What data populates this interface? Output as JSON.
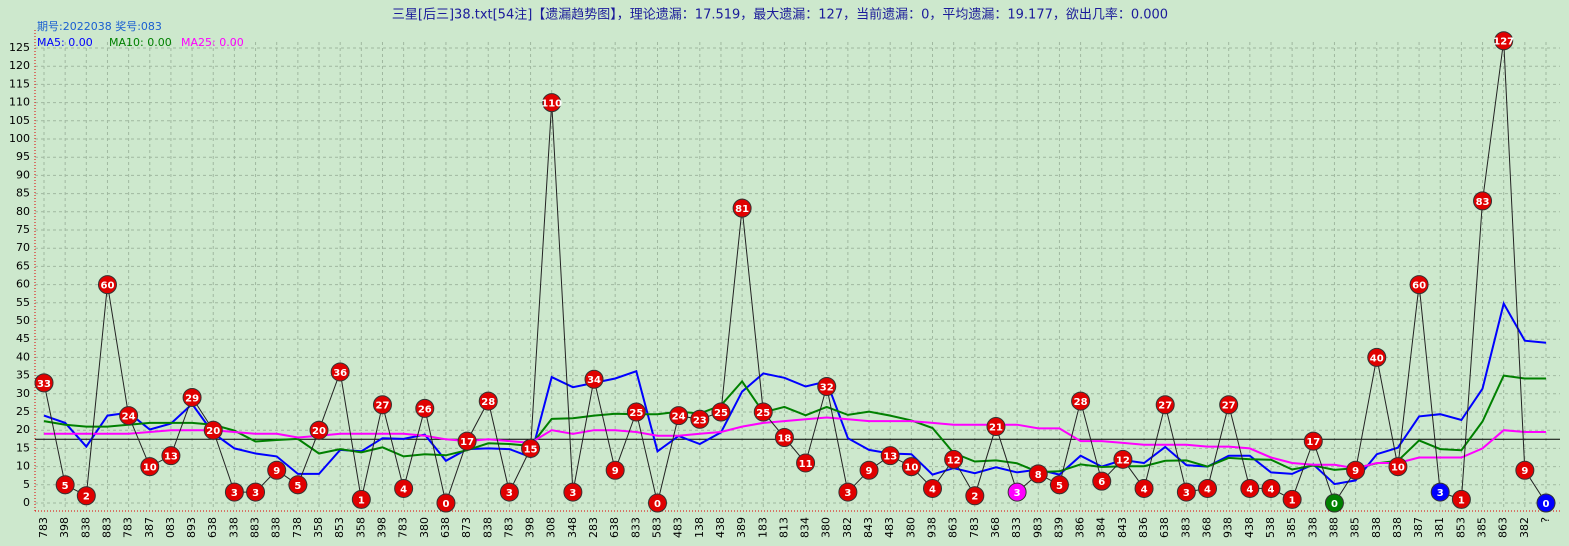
{
  "chart_data": {
    "type": "line",
    "title": "三星[后三]38.txt[54注]【遗漏趋势图】，理论遗漏：17.519，最大遗漏：127，当前遗漏：0，平均遗漏：19.177，欲出几率：0.000",
    "subtitle": "期号:2022038 奖号:083",
    "categories": [
      "783",
      "398",
      "838",
      "883",
      "783",
      "387",
      "083",
      "893",
      "638",
      "338",
      "883",
      "838",
      "738",
      "358",
      "853",
      "358",
      "398",
      "783",
      "380",
      "638",
      "873",
      "838",
      "783",
      "398",
      "308",
      "348",
      "283",
      "638",
      "833",
      "583",
      "483",
      "138",
      "438",
      "389",
      "183",
      "813",
      "834",
      "380",
      "382",
      "843",
      "483",
      "380",
      "938",
      "863",
      "783",
      "368",
      "833",
      "983",
      "839",
      "386",
      "384",
      "843",
      "836",
      "638",
      "383",
      "368",
      "938",
      "438",
      "538",
      "385",
      "338",
      "388",
      "385",
      "838",
      "838",
      "387",
      "381",
      "853",
      "385",
      "863",
      "382",
      "?"
    ],
    "values": [
      33,
      5,
      2,
      60,
      24,
      10,
      13,
      29,
      20,
      3,
      3,
      9,
      5,
      20,
      36,
      1,
      27,
      4,
      26,
      0,
      17,
      28,
      3,
      15,
      110,
      3,
      34,
      9,
      25,
      0,
      24,
      23,
      25,
      81,
      25,
      18,
      11,
      32,
      3,
      9,
      13,
      10,
      4,
      12,
      2,
      21,
      3,
      8,
      5,
      28,
      6,
      12,
      4,
      27,
      3,
      4,
      27,
      4,
      4,
      1,
      17,
      0,
      9,
      40,
      10,
      60,
      3,
      1,
      83,
      127,
      9,
      0
    ],
    "color": "#222222",
    "point_color": "#e00000",
    "special_points": [
      {
        "index": 46,
        "color": "#ff00ff"
      },
      {
        "index": 61,
        "color": "#008000"
      },
      {
        "index": 66,
        "color": "#0000ff"
      },
      {
        "index": 71,
        "color": "#0000ff"
      }
    ],
    "series": [
      {
        "name": "MA5: 0.00",
        "color": "#0000ff",
        "values": [
          24,
          22,
          15.5,
          24,
          24.8,
          20.2,
          21.8,
          27.2,
          19.2,
          15,
          13.6,
          12.8,
          8,
          8,
          14.6,
          14.2,
          17.8,
          17.6,
          18.8,
          11.6,
          14.8,
          15,
          14.8,
          12.6,
          34.6,
          31.8,
          33,
          34.2,
          36.2,
          14.2,
          18.4,
          16.2,
          19.4,
          30.6,
          35.6,
          34.4,
          32,
          33.4,
          17.8,
          14.6,
          13.6,
          13.4,
          7.8,
          9.6,
          8.2,
          9.8,
          8.4,
          9.2,
          7.8,
          13,
          10,
          11.8,
          11,
          15.4,
          10.4,
          10,
          13,
          13,
          8.4,
          8,
          10.6,
          5.2,
          6.2,
          13.4,
          15.2,
          23.8,
          24.4,
          22.8,
          31.4,
          54.8,
          44.6,
          44
        ]
      },
      {
        "name": "MA10: 0.00",
        "color": "#008000",
        "values": [
          22.5,
          21.5,
          21,
          21,
          21.5,
          22,
          22,
          22,
          21.5,
          19.9,
          16.9,
          17.3,
          17.6,
          13.6,
          14.8,
          13.9,
          15.3,
          12.8,
          13.4,
          13.1,
          14.5,
          16.4,
          16.2,
          15.7,
          23.1,
          23.3,
          24,
          24.5,
          24.4,
          24.4,
          25.1,
          24.6,
          26.8,
          33.4,
          24.9,
          26.4,
          24.1,
          26.4,
          24.2,
          25.1,
          24,
          22.7,
          20.6,
          13.7,
          11.4,
          11.7,
          10.9,
          8.5,
          8.7,
          10.6,
          9.9,
          10.1,
          10.1,
          11.6,
          11.7,
          10,
          12.4,
          12,
          11.9,
          9.2,
          10.3,
          9.1,
          9.6,
          10.9,
          11.6,
          17.2,
          14.8,
          14.5,
          22.4,
          35,
          34.2,
          34.2
        ]
      },
      {
        "name": "MA25: 0.00",
        "color": "#ff00ff",
        "values": [
          19,
          19,
          19,
          19,
          19,
          19.5,
          20,
          20,
          20,
          19.5,
          19,
          19,
          18,
          18.5,
          19,
          19,
          19,
          19,
          18.5,
          17.5,
          17,
          17.5,
          17,
          16.5,
          20,
          19,
          20,
          20,
          19.5,
          18.5,
          18.5,
          19,
          19.5,
          21,
          22,
          22.5,
          23,
          23.5,
          23,
          22.5,
          22.5,
          22.5,
          22,
          21.5,
          21.5,
          21.5,
          21.5,
          20.5,
          20.5,
          17,
          17,
          16.5,
          16,
          16,
          16,
          15.5,
          15.5,
          15,
          12.5,
          11,
          10.5,
          10.5,
          9.5,
          11,
          11,
          12.5,
          12.5,
          12.5,
          15,
          20,
          19.5,
          19.5
        ]
      }
    ],
    "reference_line": 17.519,
    "ylim": [
      0,
      125
    ],
    "yticks": [
      0,
      5,
      10,
      15,
      20,
      25,
      30,
      35,
      40,
      45,
      50,
      55,
      60,
      65,
      70,
      75,
      80,
      85,
      90,
      95,
      100,
      105,
      110,
      115,
      120,
      125
    ],
    "grid": true
  }
}
